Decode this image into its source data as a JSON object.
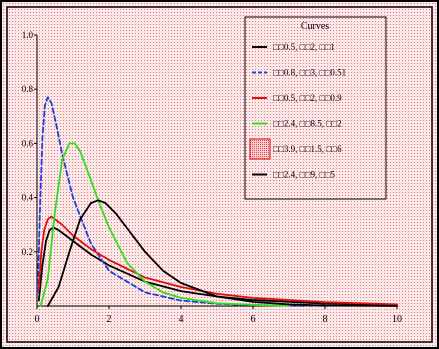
{
  "chart_data": {
    "type": "line",
    "title": "",
    "xlabel": "",
    "ylabel": "",
    "xlim": [
      0,
      10
    ],
    "ylim": [
      0,
      1.0
    ],
    "x_ticks": [
      "0",
      "2",
      "4",
      "6",
      "8",
      "10"
    ],
    "y_ticks": [
      "0.2",
      "0.4",
      "0.6",
      "0.8",
      "1.0"
    ],
    "grid": false,
    "legend_title": "Curves",
    "legend_position": "top-right",
    "background": "dotted-pink",
    "series": [
      {
        "name": "□□0.5, □□2, □□1",
        "color": "#000000",
        "dash": "solid",
        "x": [
          0.05,
          0.15,
          0.25,
          0.35,
          0.45,
          0.6,
          0.8,
          1.0,
          1.5,
          2.0,
          3.0,
          4.0,
          5.0,
          6.0,
          8.0,
          10.0
        ],
        "y": [
          0.02,
          0.15,
          0.24,
          0.28,
          0.29,
          0.28,
          0.26,
          0.24,
          0.19,
          0.15,
          0.09,
          0.055,
          0.035,
          0.022,
          0.009,
          0.004
        ]
      },
      {
        "name": "□□0.8, □□3, □□0.51",
        "color": "#1f3fd6",
        "dash": "dashed",
        "x": [
          0.02,
          0.08,
          0.15,
          0.22,
          0.3,
          0.4,
          0.55,
          0.7,
          1.0,
          1.5,
          2.0,
          3.0,
          4.0,
          5.0,
          6.0,
          8.0
        ],
        "y": [
          0.05,
          0.35,
          0.62,
          0.74,
          0.77,
          0.75,
          0.66,
          0.56,
          0.4,
          0.23,
          0.13,
          0.05,
          0.02,
          0.008,
          0.003,
          0.001
        ]
      },
      {
        "name": "□□0.5, □□2, □□0.9",
        "color": "#e01010",
        "dash": "solid",
        "x": [
          0.05,
          0.12,
          0.2,
          0.3,
          0.4,
          0.5,
          0.7,
          1.0,
          1.5,
          2.0,
          3.0,
          4.0,
          5.0,
          6.0,
          8.0,
          10.0
        ],
        "y": [
          0.06,
          0.2,
          0.28,
          0.32,
          0.33,
          0.32,
          0.3,
          0.26,
          0.21,
          0.17,
          0.105,
          0.07,
          0.045,
          0.03,
          0.014,
          0.006
        ]
      },
      {
        "name": "□□2.4, □□8.5, □□2",
        "color": "#33dd1b",
        "dash": "solid",
        "x": [
          0.1,
          0.3,
          0.5,
          0.7,
          0.9,
          1.05,
          1.2,
          1.4,
          1.7,
          2.0,
          2.5,
          3.0,
          3.5,
          4.0,
          5.0,
          6.0,
          7.0
        ],
        "y": [
          0.0,
          0.1,
          0.35,
          0.54,
          0.6,
          0.6,
          0.57,
          0.5,
          0.39,
          0.29,
          0.16,
          0.09,
          0.05,
          0.03,
          0.01,
          0.004,
          0.001
        ]
      },
      {
        "name": "□□3.9, □□1.5, □□6",
        "color": "#e01010",
        "dash": "none",
        "x": [],
        "y": []
      },
      {
        "name": "□□2.4, □□9, □□5",
        "color": "#000000",
        "dash": "solid",
        "x": [
          0.3,
          0.6,
          0.9,
          1.2,
          1.5,
          1.7,
          1.9,
          2.2,
          2.6,
          3.0,
          3.5,
          4.0,
          5.0,
          6.0,
          7.0,
          8.0,
          10.0
        ],
        "y": [
          0.0,
          0.07,
          0.2,
          0.32,
          0.38,
          0.39,
          0.38,
          0.34,
          0.27,
          0.2,
          0.13,
          0.085,
          0.035,
          0.015,
          0.006,
          0.002,
          0.0
        ]
      }
    ]
  }
}
